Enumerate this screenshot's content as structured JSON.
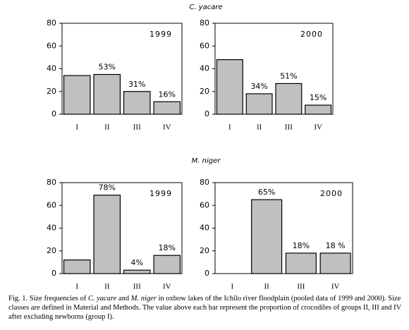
{
  "sections": [
    "C. yacare",
    "M. niger"
  ],
  "chart_data": [
    {
      "type": "bar",
      "annotation": "1999",
      "categories": [
        "I",
        "II",
        "III",
        "IV"
      ],
      "values": [
        34,
        35,
        20,
        11
      ],
      "bar_notes": [
        null,
        "53%",
        "31%",
        "16%"
      ],
      "color": "#c0c0c0",
      "ylim": [
        0,
        80
      ],
      "yticks": [
        0,
        20,
        40,
        60,
        80
      ]
    },
    {
      "type": "bar",
      "annotation": "2000",
      "categories": [
        "I",
        "II",
        "III",
        "IV"
      ],
      "values": [
        48,
        18,
        27,
        8
      ],
      "bar_notes": [
        null,
        "34%",
        "51%",
        "15%"
      ],
      "color": "#c0c0c0",
      "ylim": [
        0,
        80
      ],
      "yticks": [
        0,
        20,
        40,
        60,
        80
      ]
    },
    {
      "type": "bar",
      "annotation": "1999",
      "categories": [
        "I",
        "II",
        "III",
        "IV"
      ],
      "values": [
        12,
        69,
        3,
        16
      ],
      "bar_notes": [
        null,
        "78%",
        "4%",
        "18%"
      ],
      "color": "#c0c0c0",
      "ylim": [
        0,
        80
      ],
      "yticks": [
        0,
        20,
        40,
        60,
        80
      ]
    },
    {
      "type": "bar",
      "annotation": "2000",
      "categories": [
        "I",
        "II",
        "III",
        "IV"
      ],
      "values": [
        0,
        65,
        18,
        18
      ],
      "bar_notes": [
        null,
        "65%",
        "18%",
        "18 %"
      ],
      "color": "#c0c0c0",
      "ylim": [
        0,
        80
      ],
      "yticks": [
        0,
        20,
        40,
        60,
        80
      ]
    }
  ],
  "caption": [
    "Fig. 1. Size frequencies of ",
    "C. yacare",
    " and ",
    "M. niger",
    " in oxbow lakes of the Ichilo river floodplain (pooled data of 1999 and 2000). Size classes are defined in Material and Methods. The value above each bar represent the proportion of crocodiles of groups II, III and IV after excluding newborns (group I)."
  ]
}
